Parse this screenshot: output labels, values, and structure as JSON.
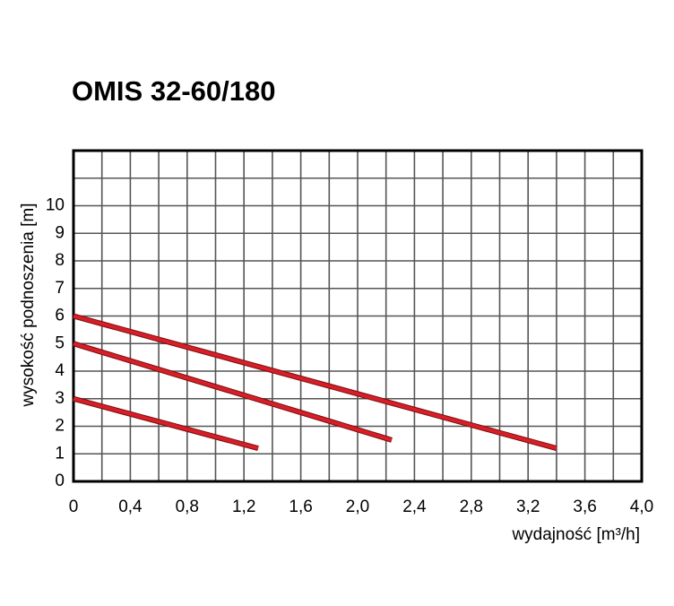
{
  "chart_data": {
    "type": "line",
    "title": "OMIS 32-60/180",
    "xlabel": "wydajność [m³/h]",
    "ylabel": "wysokość podnoszenia [m]",
    "xlim": [
      0,
      4
    ],
    "ylim": [
      0,
      12
    ],
    "xticks": [
      0,
      {
        "value": 0.4,
        "label": "0,4"
      },
      {
        "value": 0.8,
        "label": "0,8"
      },
      {
        "value": 1.2,
        "label": "1,2"
      },
      {
        "value": 1.6,
        "label": "1,6"
      },
      {
        "value": 2.0,
        "label": "2,0"
      },
      {
        "value": 2.4,
        "label": "2,4"
      },
      {
        "value": 2.8,
        "label": "2,8"
      },
      {
        "value": 3.2,
        "label": "3,2"
      },
      {
        "value": 3.6,
        "label": "3,6"
      },
      {
        "value": 4.0,
        "label": "4,0"
      }
    ],
    "yticks": [
      0,
      1,
      2,
      3,
      4,
      5,
      6,
      7,
      8,
      9,
      10
    ],
    "x_minor_grid": [
      0.2,
      0.6,
      1.0,
      1.4,
      1.8,
      2.2,
      2.6,
      3.0,
      3.4,
      3.8
    ],
    "y_minor_grid": [
      11
    ],
    "grid": true,
    "series": [
      {
        "color": "#d71f27",
        "x": [
          0,
          1.3
        ],
        "values": [
          3,
          1.2
        ]
      },
      {
        "color": "#d71f27",
        "x": [
          0,
          2.24
        ],
        "values": [
          5,
          1.5
        ]
      },
      {
        "color": "#d71f27",
        "x": [
          0,
          3.4
        ],
        "values": [
          6,
          1.2
        ]
      }
    ]
  }
}
